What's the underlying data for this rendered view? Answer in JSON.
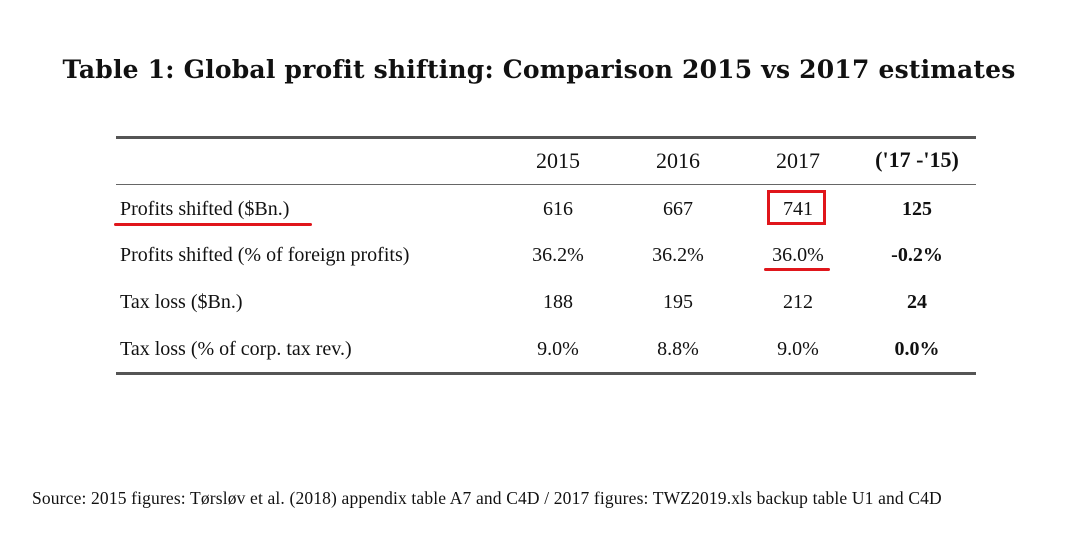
{
  "title": "Table 1: Global profit shifting: Comparison 2015 vs 2017 estimates",
  "table": {
    "columns": [
      "2015",
      "2016",
      "2017",
      "('17 -'15)"
    ],
    "rows": [
      {
        "label": "Profits shifted ($Bn.)",
        "values": [
          "616",
          "667",
          "741",
          "125"
        ]
      },
      {
        "label": "Profits shifted (% of foreign profits)",
        "values": [
          "36.2%",
          "36.2%",
          "36.0%",
          "-0.2%"
        ]
      },
      {
        "label": "Tax loss ($Bn.)",
        "values": [
          "188",
          "195",
          "212",
          "24"
        ]
      },
      {
        "label": "Tax loss (% of corp. tax rev.)",
        "values": [
          "9.0%",
          "8.8%",
          "9.0%",
          "0.0%"
        ]
      }
    ]
  },
  "annotations": {
    "color": "#e0161b"
  },
  "source": "Source: 2015 figures: Tørsløv et al. (2018) appendix table A7 and C4D / 2017 figures: TWZ2019.xls backup table U1 and C4D"
}
